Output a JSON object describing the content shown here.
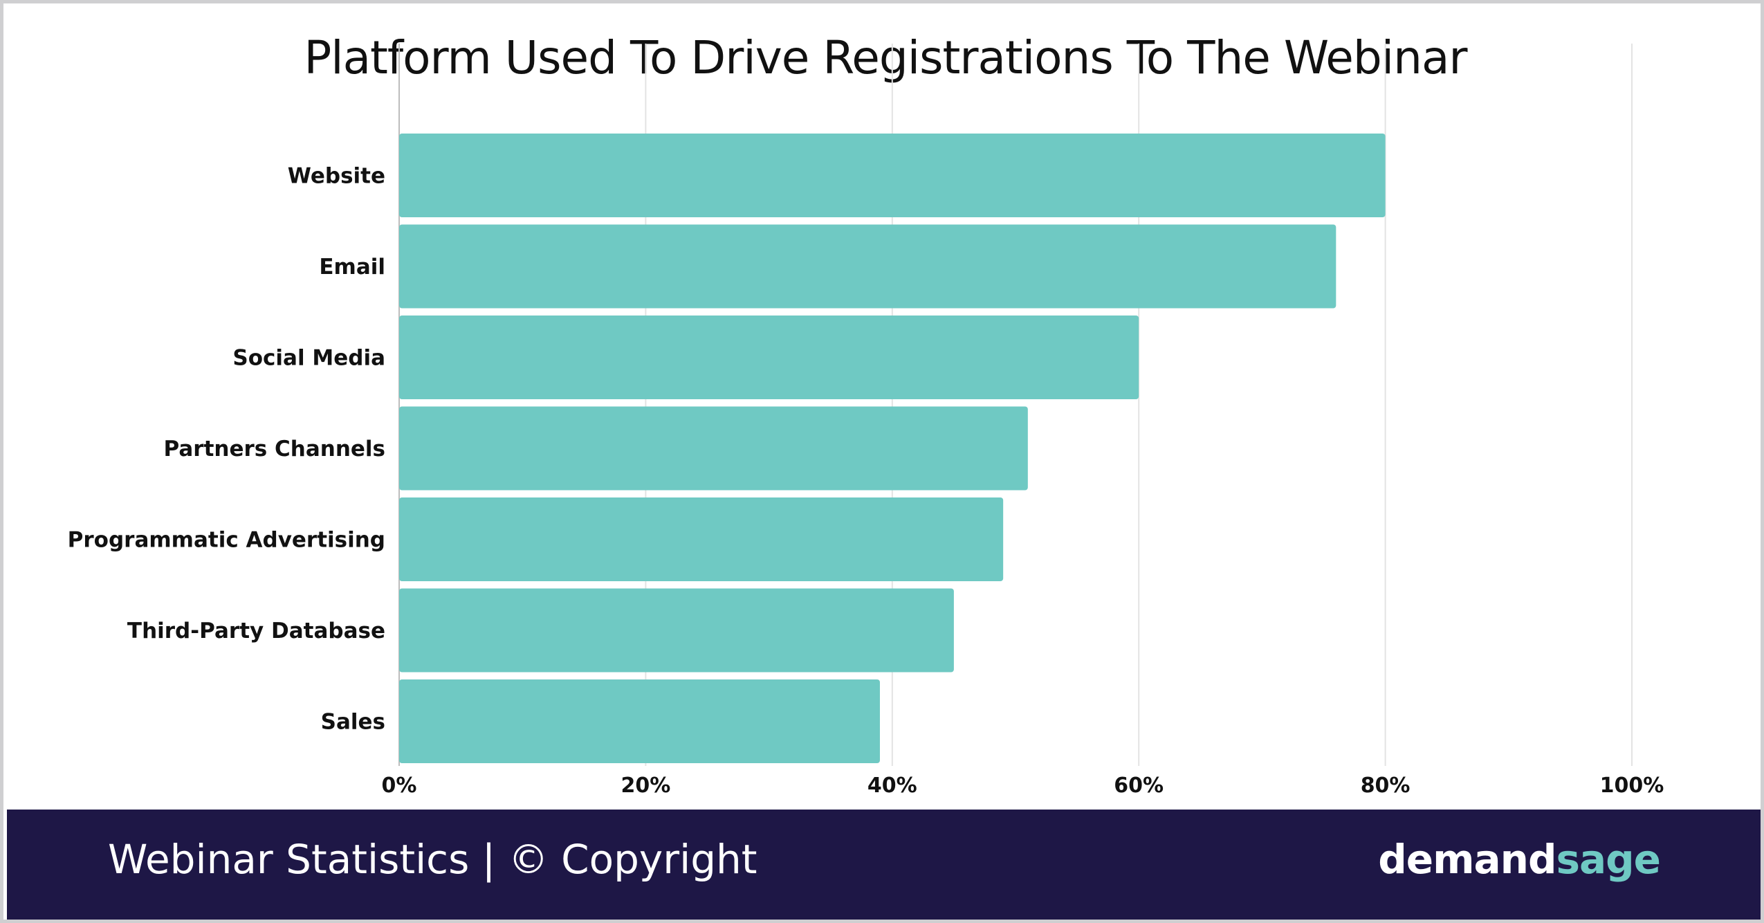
{
  "chart_data": {
    "type": "bar",
    "orientation": "horizontal",
    "title": "Platform Used To Drive Registrations To The Webinar",
    "categories": [
      "Website",
      "Email",
      "Social Media",
      "Partners Channels",
      "Programmatic Advertising",
      "Third-Party Database",
      "Sales"
    ],
    "values": [
      80,
      76,
      60,
      51,
      49,
      45,
      39
    ],
    "xlim": [
      0,
      100
    ],
    "xticks": [
      "0%",
      "20%",
      "40%",
      "60%",
      "80%",
      "100%"
    ],
    "grid": true,
    "legend": "none",
    "bar_color": "#6fc9c3"
  },
  "footer": {
    "left_text": "Webinar Statistics | © Copyright",
    "brand_part1": "demand",
    "brand_part2": "sage",
    "background_color": "#1e1746",
    "brand_accent_color": "#6fc9c3"
  }
}
